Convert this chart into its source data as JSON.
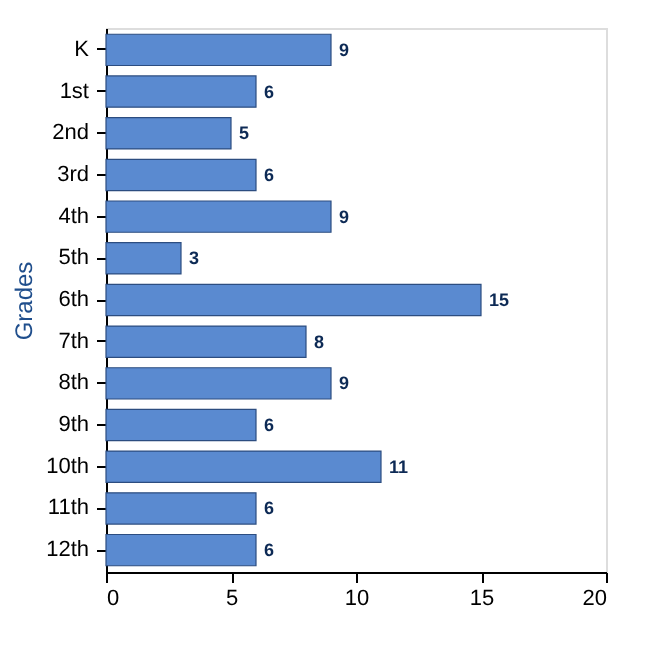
{
  "chart_data": {
    "type": "bar",
    "orientation": "horizontal",
    "ylabel": "Grades",
    "categories": [
      "K",
      "1st",
      "2nd",
      "3rd",
      "4th",
      "5th",
      "6th",
      "7th",
      "8th",
      "9th",
      "10th",
      "11th",
      "12th"
    ],
    "values": [
      9,
      6,
      5,
      6,
      9,
      3,
      15,
      8,
      9,
      6,
      11,
      6,
      6
    ],
    "color": "#5a8ad0",
    "xlim": [
      0,
      20
    ],
    "xticks": [
      0,
      5,
      10,
      15,
      20
    ],
    "data_labels": true,
    "grid": false
  }
}
